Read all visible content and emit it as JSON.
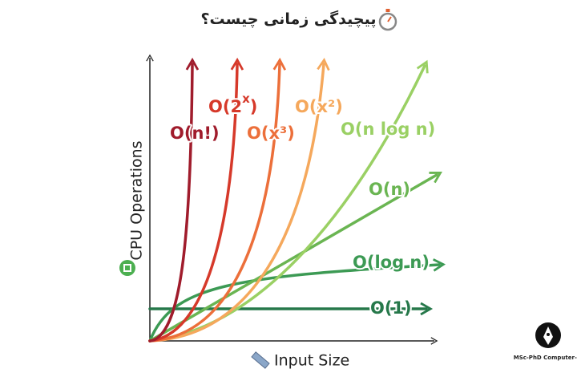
{
  "title": "پیچیدگی زمانی چیست؟",
  "axes": {
    "y_label": "CPU Operations",
    "x_label": "Input Size"
  },
  "curves": [
    {
      "label": "O(n!)"
    },
    {
      "label": {
        "base": "O(2",
        "exponent": "x",
        "close": ")"
      }
    },
    {
      "label": "O(x³)"
    },
    {
      "label": "O(x²)"
    },
    {
      "label": "O(n log n)"
    },
    {
      "label": "O(n)"
    },
    {
      "label": "O(log n)"
    },
    {
      "label": "O(1)"
    }
  ],
  "logo": {
    "text": "MSc-PhD Computer-IT"
  }
}
